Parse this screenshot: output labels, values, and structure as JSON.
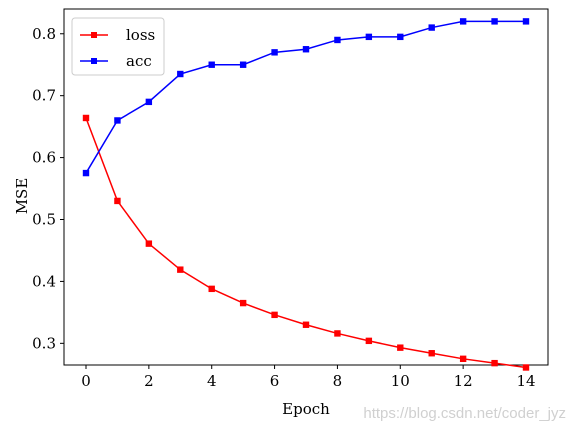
{
  "chart_data": {
    "type": "line",
    "title": "",
    "xlabel": "Epoch",
    "ylabel": "MSE",
    "xlim": [
      -0.7,
      14.7
    ],
    "ylim": [
      0.265,
      0.84
    ],
    "xticks": [
      0,
      2,
      4,
      6,
      8,
      10,
      12,
      14
    ],
    "xtick_labels": [
      "0",
      "2",
      "4",
      "6",
      "8",
      "10",
      "12",
      "14"
    ],
    "yticks": [
      0.3,
      0.4,
      0.5,
      0.6,
      0.7,
      0.8
    ],
    "ytick_labels": [
      "0.3",
      "0.4",
      "0.5",
      "0.6",
      "0.7",
      "0.8"
    ],
    "grid": false,
    "legend_position": "top-left",
    "x": [
      0,
      1,
      2,
      3,
      4,
      5,
      6,
      7,
      8,
      9,
      10,
      11,
      12,
      13,
      14
    ],
    "series": [
      {
        "name": "loss",
        "color": "#ff0000",
        "marker": "square",
        "values": [
          0.664,
          0.53,
          0.461,
          0.419,
          0.388,
          0.365,
          0.346,
          0.33,
          0.316,
          0.304,
          0.293,
          0.284,
          0.275,
          0.268,
          0.261
        ]
      },
      {
        "name": "acc",
        "color": "#0000ff",
        "marker": "square",
        "values": [
          0.575,
          0.66,
          0.69,
          0.735,
          0.75,
          0.75,
          0.77,
          0.775,
          0.79,
          0.795,
          0.795,
          0.81,
          0.82,
          0.82,
          0.82
        ]
      }
    ]
  },
  "watermark": "https://blog.csdn.net/coder_jyz"
}
